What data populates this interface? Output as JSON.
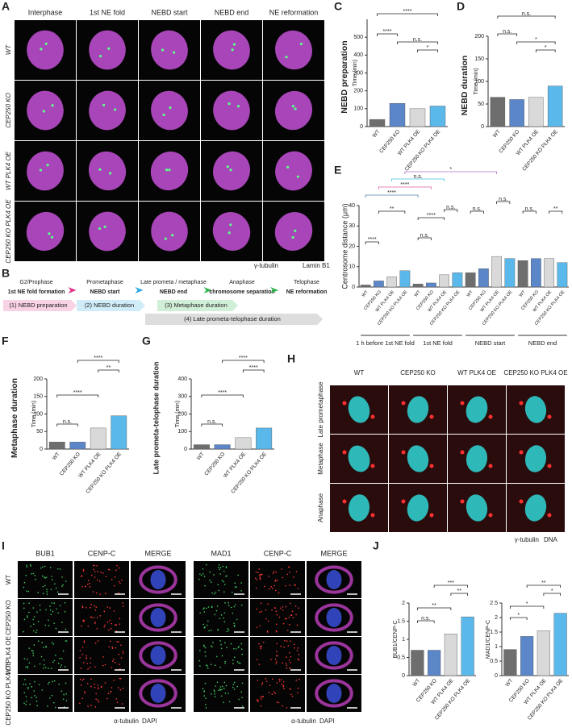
{
  "panel_labels": [
    "A",
    "B",
    "C",
    "D",
    "E",
    "F",
    "G",
    "H",
    "I",
    "J"
  ],
  "panel_a": {
    "columns": [
      "Interphase",
      "1st NE fold",
      "NEBD start",
      "NEBD end",
      "NE reformation"
    ],
    "rows": [
      "WT",
      "CEP250 KO",
      "WT PLK4 OE",
      "CEP250 KO PLK4 OE"
    ],
    "legend": [
      {
        "label": "γ-tubulin",
        "color": "#2fc85a"
      },
      {
        "label": "Lamin B1",
        "color": "#d23fc8"
      }
    ]
  },
  "panel_b": {
    "stages": [
      {
        "phase": "G2/Prophase",
        "event": "1st NE fold formation"
      },
      {
        "phase": "Prometaphase",
        "event": "NEBD start"
      },
      {
        "phase": "Late prometa / metaphase",
        "event": "NEBD end"
      },
      {
        "phase": "Anaphase",
        "event": "chromosome separation"
      },
      {
        "phase": "Telophase",
        "event": "NE reformation"
      }
    ],
    "durations": [
      {
        "label": "(1) NEBD preparation",
        "color": "#e0308a"
      },
      {
        "label": "(2) NEBD duration",
        "color": "#2aa8e0"
      },
      {
        "label": "(3) Metaphase duration",
        "color": "#2eb34a"
      },
      {
        "label": "(4) Late prometa-telophase duration",
        "color": "#666666"
      }
    ]
  },
  "panel_h": {
    "columns": [
      "WT",
      "CEP250 KO",
      "WT PLK4 OE",
      "CEP250 KO PLK4 OE"
    ],
    "rows": [
      "Late prometaphase",
      "Metaphase",
      "Anaphase"
    ],
    "legend": [
      {
        "label": "γ-tubulin",
        "color": "#e0302a"
      },
      {
        "label": "DNA",
        "color": "#1fb5b5"
      }
    ]
  },
  "panel_i": {
    "columns": [
      "BUB1",
      "CENP-C",
      "MERGE",
      "MAD1",
      "CENP-C",
      "MERGE"
    ],
    "column_colors": [
      "#2fc85a",
      "#e0302a",
      "#222222",
      "#2fc85a",
      "#e0302a",
      "#222222"
    ],
    "rows": [
      "WT",
      "CEP250 KO",
      "WT PLK4 OE",
      "CEP250 KO PLK4 OE"
    ],
    "legend": [
      {
        "label": "α-tubulin",
        "color": "#d23fc8"
      },
      {
        "label": "DAPI",
        "color": "#3a4fd8"
      }
    ]
  },
  "chart_data": [
    {
      "type": "bar",
      "title": "NEBD preparation",
      "title_color": "#e0308a",
      "ylabel": "Time (min)",
      "categories": [
        "WT",
        "CEP250 KO",
        "WT PLK4 OE",
        "CEP250 KO PLK4 OE"
      ],
      "values": [
        40,
        130,
        100,
        115
      ],
      "colors": [
        "#6e6e6e",
        "#5b86c8",
        "#d9d9d9",
        "#5bb8ea"
      ],
      "ylim": [
        0,
        600
      ],
      "yticks": [
        0,
        100,
        200,
        300,
        400,
        500
      ],
      "annotations": [
        "****",
        "****",
        "n.s.",
        "*"
      ]
    },
    {
      "type": "bar",
      "title": "NEBD duration",
      "title_color": "#2aa8e0",
      "ylabel": "Time (min)",
      "categories": [
        "WT",
        "CEP250 KO",
        "WT PLK4 OE",
        "CEP250 KO PLK4 OE"
      ],
      "values": [
        65,
        60,
        65,
        90
      ],
      "colors": [
        "#6e6e6e",
        "#5b86c8",
        "#d9d9d9",
        "#5bb8ea"
      ],
      "ylim": [
        0,
        200
      ],
      "yticks": [
        0,
        50,
        100,
        150,
        200
      ],
      "annotations": [
        "n.s.",
        "n.s.",
        "*",
        "*"
      ]
    },
    {
      "type": "bar",
      "ylabel": "Centrosome distance (μm)",
      "categories": [
        "WT",
        "CEP250 KO",
        "WT PLK4 OE",
        "CEP250 KO PLK4 OE",
        "WT",
        "CEP250 KO",
        "WT PLK4 OE",
        "CEP250 KO PLK4 OE",
        "WT",
        "CEP250 KO",
        "WT PLK4 OE",
        "CEP250 KO PLK4 OE",
        "WT",
        "CEP250 KO",
        "WT PLK4 OE",
        "CEP250 KO PLK4 OE"
      ],
      "groups": [
        "1 h before 1st NE fold",
        "1st NE fold",
        "NEBD start",
        "NEBD end"
      ],
      "values": [
        1,
        3,
        5,
        8,
        1.5,
        2,
        6,
        7,
        7,
        9,
        15,
        14,
        13,
        14,
        14,
        12
      ],
      "colors": [
        "#6e6e6e",
        "#5b86c8",
        "#d9d9d9",
        "#5bb8ea",
        "#6e6e6e",
        "#5b86c8",
        "#d9d9d9",
        "#5bb8ea",
        "#6e6e6e",
        "#5b86c8",
        "#d9d9d9",
        "#5bb8ea",
        "#6e6e6e",
        "#5b86c8",
        "#d9d9d9",
        "#5bb8ea"
      ],
      "ylim": [
        0,
        40
      ],
      "yticks": [
        0,
        10,
        20,
        30,
        40
      ],
      "annotations": [
        "*",
        "n.s.",
        "****",
        "****",
        "****",
        "**",
        "****",
        "n.s.",
        "n.s.",
        "n.s.",
        "n.s.",
        "n.s.",
        "**"
      ],
      "annotation_colors": [
        "#b070d0",
        "#40c0e0",
        "#e060a0",
        "#5080b0",
        "#222222",
        "#222222",
        "#222222",
        "#222222",
        "#222222",
        "#222222",
        "#222222",
        "#222222",
        "#222222"
      ]
    },
    {
      "type": "bar",
      "title": "Metaphase duration",
      "title_color": "#2eb34a",
      "ylabel": "Time (min)",
      "categories": [
        "WT",
        "CEP250 KO",
        "WT PLK4 OE",
        "CEP250 KO PLK4 OE"
      ],
      "values": [
        20,
        20,
        60,
        95
      ],
      "colors": [
        "#6e6e6e",
        "#5b86c8",
        "#d9d9d9",
        "#5bb8ea"
      ],
      "ylim": [
        0,
        200
      ],
      "yticks": [
        0,
        50,
        100,
        150,
        200
      ],
      "annotations": [
        "****",
        "**",
        "****",
        "n.s."
      ]
    },
    {
      "type": "bar",
      "title": "Late prometa-telophase duration",
      "title_color": "#222222",
      "ylabel": "Time (min)",
      "categories": [
        "WT",
        "CEP250 KO",
        "WT PLK4 OE",
        "CEP250 KO PLK4 OE"
      ],
      "values": [
        25,
        25,
        65,
        120
      ],
      "colors": [
        "#6e6e6e",
        "#5b86c8",
        "#d9d9d9",
        "#5bb8ea"
      ],
      "ylim": [
        0,
        400
      ],
      "yticks": [
        0,
        100,
        200,
        300,
        400
      ],
      "annotations": [
        "****",
        "****",
        "****",
        "n.s."
      ]
    },
    {
      "type": "bar",
      "ylabel": "BUB1/CENP-C",
      "categories": [
        "WT",
        "CEP250 KO",
        "WT PLK4 OE",
        "CEP250 KO PLK4 OE"
      ],
      "values": [
        0.7,
        0.7,
        1.15,
        1.62
      ],
      "colors": [
        "#6e6e6e",
        "#5b86c8",
        "#d9d9d9",
        "#5bb8ea"
      ],
      "ylim": [
        0,
        2
      ],
      "yticks": [
        0,
        0.5,
        1,
        1.5,
        2
      ],
      "annotations": [
        "***",
        "**",
        "**",
        "n.s."
      ]
    },
    {
      "type": "bar",
      "ylabel": "MAD1/CENP-C",
      "categories": [
        "WT",
        "CEP250 KO",
        "WT PLK4 OE",
        "CEP250 KO PLK4 OE"
      ],
      "values": [
        0.9,
        1.35,
        1.55,
        2.15
      ],
      "colors": [
        "#6e6e6e",
        "#5b86c8",
        "#d9d9d9",
        "#5bb8ea"
      ],
      "ylim": [
        0,
        2.5
      ],
      "yticks": [
        0,
        0.5,
        1,
        1.5,
        2,
        2.5
      ],
      "annotations": [
        "**",
        "*",
        "*",
        "*"
      ]
    }
  ]
}
